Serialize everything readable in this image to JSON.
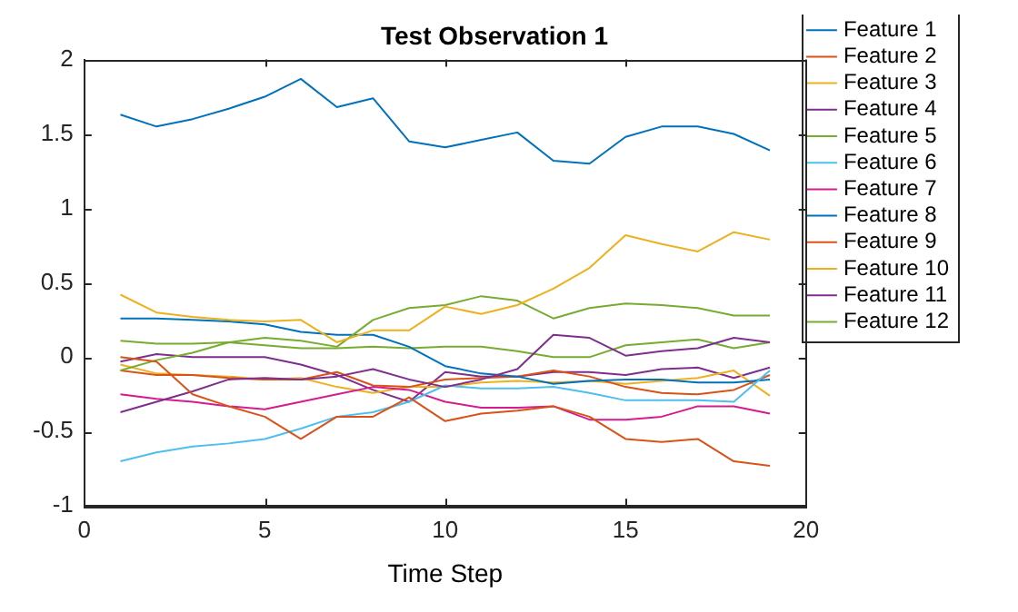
{
  "chart_data": {
    "type": "line",
    "title": "Test Observation 1",
    "xlabel": "Time Step",
    "x": [
      1,
      2,
      3,
      4,
      5,
      6,
      7,
      8,
      9,
      10,
      11,
      12,
      13,
      14,
      15,
      16,
      17,
      18,
      19
    ],
    "xlim": [
      0,
      20
    ],
    "xticks": [
      0,
      5,
      10,
      15,
      20
    ],
    "ylim": [
      -1,
      2
    ],
    "yticks": [
      -1,
      -0.5,
      0,
      0.5,
      1,
      1.5,
      2
    ],
    "grid": false,
    "legend": "top right",
    "marker": "none",
    "line_style": "solid",
    "series": [
      {
        "name": "Feature 1",
        "color": "#0072bd",
        "values": [
          1.63,
          1.55,
          1.6,
          1.67,
          1.75,
          1.87,
          1.68,
          1.74,
          1.45,
          1.41,
          1.46,
          1.51,
          1.32,
          1.3,
          1.48,
          1.55,
          1.55,
          1.5,
          1.39
        ]
      },
      {
        "name": "Feature 2",
        "color": "#d95319",
        "values": [
          0,
          -0.03,
          -0.25,
          -0.33,
          -0.4,
          -0.55,
          -0.4,
          -0.4,
          -0.27,
          -0.43,
          -0.38,
          -0.36,
          -0.33,
          -0.4,
          -0.55,
          -0.57,
          -0.55,
          -0.7,
          -0.73
        ]
      },
      {
        "name": "Feature 3",
        "color": "#edb120",
        "values": [
          0.42,
          0.3,
          0.27,
          0.25,
          0.24,
          0.25,
          0.1,
          0.18,
          0.18,
          0.34,
          0.29,
          0.35,
          0.46,
          0.6,
          0.82,
          0.76,
          0.71,
          0.84,
          0.79
        ]
      },
      {
        "name": "Feature 4",
        "color": "#7e2f8e",
        "values": [
          -0.37,
          -0.3,
          -0.23,
          -0.15,
          -0.14,
          -0.15,
          -0.13,
          -0.08,
          -0.15,
          -0.2,
          -0.15,
          -0.08,
          0.15,
          0.13,
          0.01,
          0.04,
          0.06,
          0.13,
          0.1
        ]
      },
      {
        "name": "Feature 5",
        "color": "#77ac30",
        "values": [
          -0.09,
          -0.02,
          0.03,
          0.1,
          0.13,
          0.11,
          0.07,
          0.25,
          0.33,
          0.35,
          0.41,
          0.38,
          0.26,
          0.33,
          0.36,
          0.35,
          0.33,
          0.28,
          0.28
        ]
      },
      {
        "name": "Feature 6",
        "color": "#4dbeee",
        "values": [
          -0.7,
          -0.64,
          -0.6,
          -0.58,
          -0.55,
          -0.48,
          -0.4,
          -0.37,
          -0.3,
          -0.19,
          -0.21,
          -0.21,
          -0.2,
          -0.24,
          -0.29,
          -0.29,
          -0.29,
          -0.3,
          -0.09
        ]
      },
      {
        "name": "Feature 7",
        "color": "#d41c8f",
        "values": [
          -0.25,
          -0.28,
          -0.3,
          -0.33,
          -0.35,
          -0.3,
          -0.25,
          -0.2,
          -0.22,
          -0.3,
          -0.34,
          -0.34,
          -0.33,
          -0.42,
          -0.42,
          -0.4,
          -0.33,
          -0.33,
          -0.38
        ]
      },
      {
        "name": "Feature 8",
        "color": "#0072bd",
        "values": [
          0.26,
          0.26,
          0.25,
          0.24,
          0.22,
          0.17,
          0.15,
          0.15,
          0.07,
          -0.06,
          -0.11,
          -0.13,
          -0.18,
          -0.16,
          -0.15,
          -0.15,
          -0.17,
          -0.17,
          -0.15
        ]
      },
      {
        "name": "Feature 9",
        "color": "#d95319",
        "values": [
          -0.09,
          -0.12,
          -0.12,
          -0.14,
          -0.15,
          -0.15,
          -0.1,
          -0.19,
          -0.2,
          -0.15,
          -0.14,
          -0.13,
          -0.09,
          -0.13,
          -0.2,
          -0.24,
          -0.25,
          -0.22,
          -0.12
        ]
      },
      {
        "name": "Feature 10",
        "color": "#edb120",
        "values": [
          -0.05,
          -0.11,
          -0.12,
          -0.13,
          -0.15,
          -0.14,
          -0.2,
          -0.24,
          -0.2,
          -0.2,
          -0.17,
          -0.16,
          -0.17,
          -0.16,
          -0.18,
          -0.16,
          -0.14,
          -0.09,
          -0.26
        ]
      },
      {
        "name": "Feature 11",
        "color": "#7e2f8e",
        "values": [
          -0.03,
          0.02,
          0,
          0,
          0,
          -0.05,
          -0.12,
          -0.22,
          -0.3,
          -0.1,
          -0.13,
          -0.13,
          -0.1,
          -0.1,
          -0.12,
          -0.08,
          -0.07,
          -0.14,
          -0.07
        ]
      },
      {
        "name": "Feature 12",
        "color": "#77ac30",
        "values": [
          0.11,
          0.09,
          0.09,
          0.1,
          0.08,
          0.06,
          0.06,
          0.07,
          0.06,
          0.07,
          0.07,
          0.04,
          0,
          0,
          0.08,
          0.1,
          0.12,
          0.06,
          0.1
        ]
      }
    ]
  }
}
